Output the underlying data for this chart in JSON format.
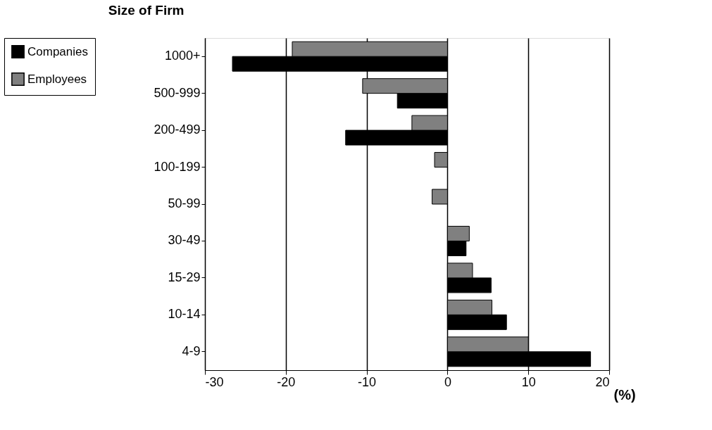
{
  "chart_data": {
    "type": "bar",
    "orientation": "horizontal",
    "ylabel": "Size of Firm",
    "xlabel": "(%)",
    "categories": [
      "1000+",
      "500-999",
      "200-499",
      "100-199",
      "50-99",
      "30-49",
      "15-29",
      "10-14",
      "4-9"
    ],
    "series": [
      {
        "name": "Companies",
        "color": "#000000",
        "values": [
          -26.6,
          -6.2,
          -12.6,
          null,
          null,
          2.3,
          5.4,
          7.3,
          17.7
        ]
      },
      {
        "name": "Employees",
        "color": "#808080",
        "values": [
          -19.2,
          -10.5,
          -4.4,
          -1.6,
          -1.9,
          2.7,
          3.1,
          5.5,
          10.0
        ]
      }
    ],
    "xlim": [
      -30,
      20
    ],
    "xticks": [
      -30,
      -20,
      -10,
      0,
      10,
      20
    ],
    "grid": "x",
    "legend": "left"
  }
}
